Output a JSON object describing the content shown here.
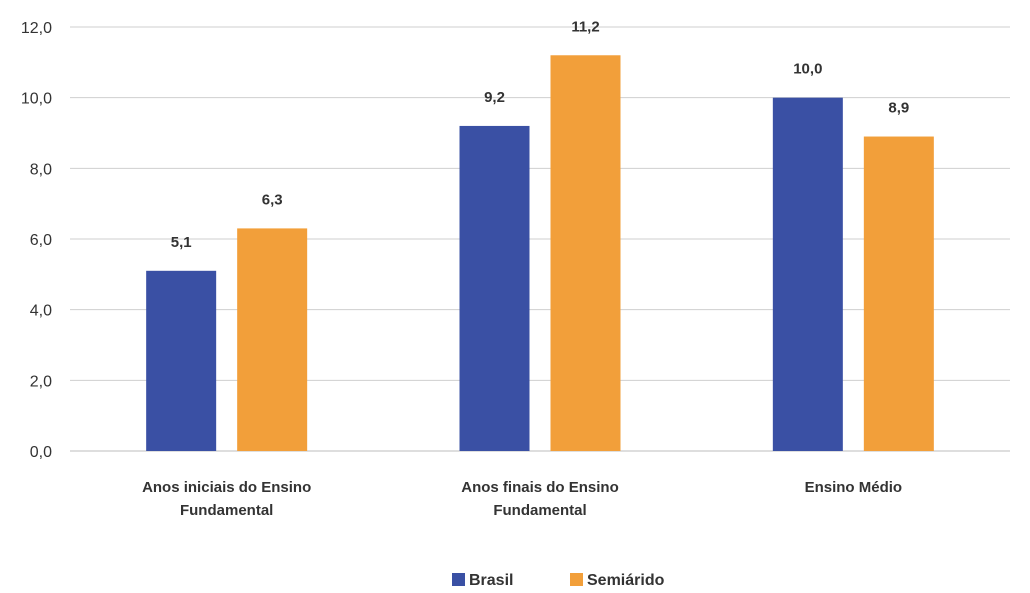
{
  "chart_data": {
    "type": "bar",
    "categories": [
      [
        "Anos iniciais do Ensino",
        "Fundamental"
      ],
      [
        "Anos finais do Ensino",
        "Fundamental"
      ],
      [
        "Ensino Médio"
      ]
    ],
    "series": [
      {
        "name": "Brasil",
        "color": "#3a50a4",
        "values": [
          5.1,
          9.2,
          10.0
        ],
        "labels": [
          "5,1",
          "9,2",
          "10,0"
        ]
      },
      {
        "name": "Semiárido",
        "color": "#f29f3a",
        "values": [
          6.3,
          11.2,
          8.9
        ],
        "labels": [
          "6,3",
          "11,2",
          "8,9"
        ]
      }
    ],
    "yticks": [
      "0,0",
      "2,0",
      "4,0",
      "6,0",
      "8,0",
      "10,0",
      "12,0"
    ],
    "ylim": [
      0,
      12
    ],
    "grid": true,
    "legend": "bottom-center",
    "title": "",
    "xlabel": "",
    "ylabel": ""
  }
}
